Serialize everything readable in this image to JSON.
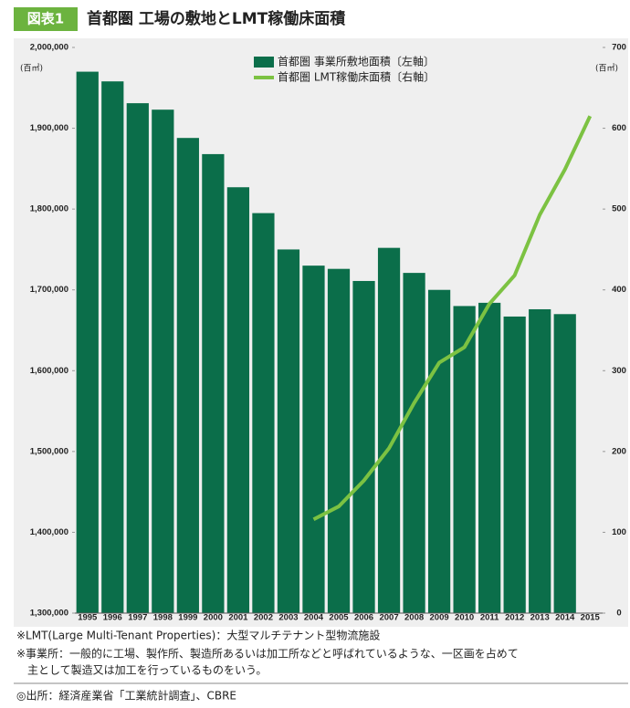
{
  "header": {
    "badge": "図表1",
    "title": "首都圏 工場の敷地とLMT稼働床面積"
  },
  "chart_data": {
    "type": "bar-line",
    "categories": [
      "1995",
      "1996",
      "1997",
      "1998",
      "1999",
      "2000",
      "2001",
      "2002",
      "2003",
      "2004",
      "2005",
      "2006",
      "2007",
      "2008",
      "2009",
      "2010",
      "2011",
      "2012",
      "2013",
      "2014",
      "2015"
    ],
    "series": [
      {
        "name": "首都圏 事業所敷地面積〔左軸〕",
        "type": "bar",
        "color": "#0b6e4a",
        "values": [
          1970000,
          1958000,
          1931000,
          1923000,
          1888000,
          1868000,
          1827000,
          1795000,
          1750000,
          1730000,
          1726000,
          1711000,
          1752000,
          1721000,
          1700000,
          1680000,
          1684000,
          1667000,
          1676000,
          1670000,
          null
        ]
      },
      {
        "name": "首都圏 LMT稼働床面積〔右軸〕",
        "type": "line",
        "axis": "y2",
        "color": "#7cc242",
        "values": [
          null,
          null,
          null,
          null,
          null,
          null,
          null,
          null,
          null,
          116,
          132,
          164,
          204,
          260,
          310,
          329,
          383,
          418,
          493,
          549,
          615
        ]
      }
    ],
    "ylabel": "(百㎡)",
    "y2label": "(百㎡)",
    "ylim": [
      1300000,
      2000000
    ],
    "yticks": [
      {
        "value": 1300000,
        "label": "1,300,000"
      },
      {
        "value": 1400000,
        "label": "1,400,000"
      },
      {
        "value": 1500000,
        "label": "1,500,000"
      },
      {
        "value": 1600000,
        "label": "1,600,000"
      },
      {
        "value": 1700000,
        "label": "1,700,000"
      },
      {
        "value": 1800000,
        "label": "1,800,000"
      },
      {
        "value": 1900000,
        "label": "1,900,000"
      },
      {
        "value": 2000000,
        "label": "2,000,000"
      }
    ],
    "y2lim": [
      0,
      700
    ],
    "y2ticks": [
      0,
      100,
      200,
      300,
      400,
      500,
      600,
      700
    ]
  },
  "notes": [
    "※LMT(Large Multi-Tenant Properties)：大型マルチテナント型物流施設",
    "※事業所：一般的に工場、製作所、製造所あるいは加工所などと呼ばれているような、一区画を占めて",
    "主として製造又は加工を行っているものをいう。"
  ],
  "source": "◎出所：経済産業省「工業統計調査」、CBRE"
}
